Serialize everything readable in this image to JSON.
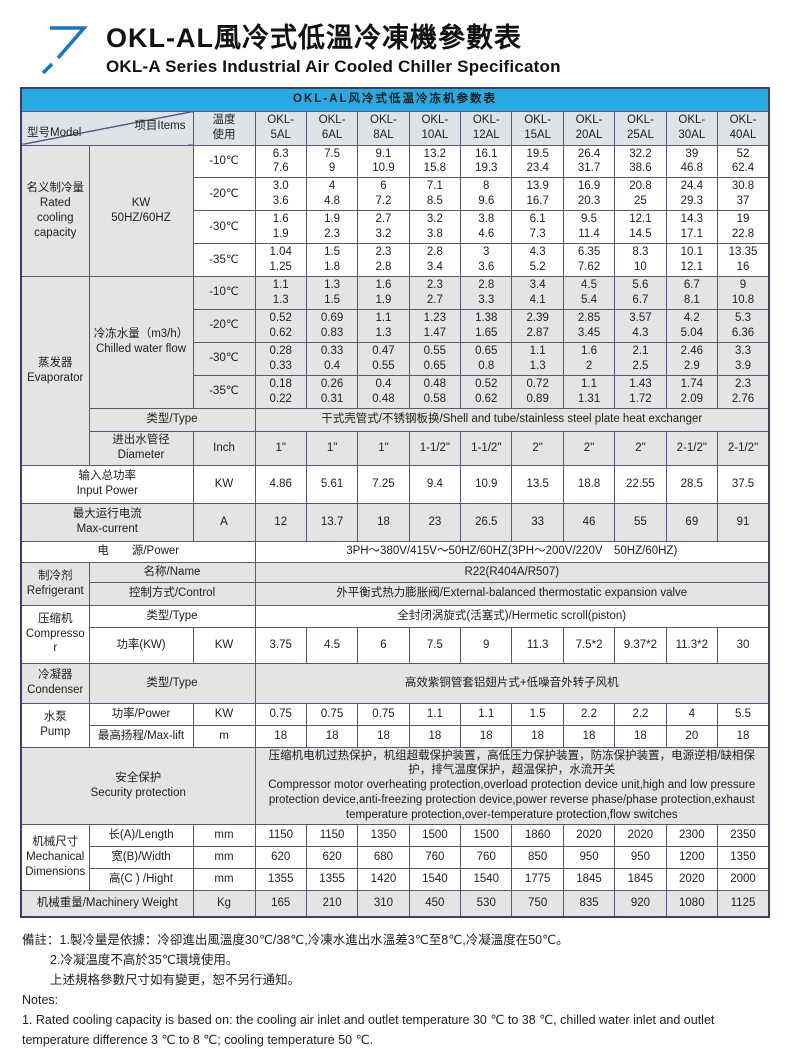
{
  "header": {
    "title_zh": "OKL-AL風冷式低溫冷凍機參數表",
    "title_en": "OKL-A Series Industrial Air Cooled Chiller Specificaton"
  },
  "table": {
    "banner": "OKL-AL风冷式低温冷冻机参数表",
    "corner_model": "型号Model",
    "corner_items": "项目Items",
    "temp_label": "温度\n使用",
    "models": [
      "OKL-\n5AL",
      "OKL-\n6AL",
      "OKL-\n8AL",
      "OKL-\n10AL",
      "OKL-\n12AL",
      "OKL-\n15AL",
      "OKL-\n20AL",
      "OKL-\n25AL",
      "OKL-\n30AL",
      "OKL-\n40AL"
    ],
    "capacity": {
      "row_label": "名义制冷量\nRated\ncooling\ncapacity",
      "unit_label": "KW\n50HZ/60HZ",
      "temps": [
        "-10℃",
        "-20℃",
        "-30℃",
        "-35℃"
      ],
      "rows": [
        [
          "6.3\n7.6",
          "7.5\n9",
          "9.1\n10.9",
          "13.2\n15.8",
          "16.1\n19.3",
          "19.5\n23.4",
          "26.4\n31.7",
          "32.2\n38.6",
          "39\n46.8",
          "52\n62.4"
        ],
        [
          "3.0\n3.6",
          "4\n4.8",
          "6\n7.2",
          "7.1\n8.5",
          "8\n9.6",
          "13.9\n16.7",
          "16.9\n20.3",
          "20.8\n25",
          "24.4\n29.3",
          "30.8\n37"
        ],
        [
          "1.6\n1.9",
          "1.9\n2.3",
          "2.7\n3.2",
          "3.2\n3.8",
          "3.8\n4.6",
          "6.1\n7.3",
          "9.5\n11.4",
          "12.1\n14.5",
          "14.3\n17.1",
          "19\n22.8"
        ],
        [
          "1.04\n1.25",
          "1.5\n1.8",
          "2.3\n2.8",
          "2.8\n3.4",
          "3\n3.6",
          "4.3\n5.2",
          "6.35\n7.62",
          "8.3\n10",
          "10.1\n12.1",
          "13.35\n16"
        ]
      ]
    },
    "evaporator": {
      "row_label": "蒸发器\nEvaporator",
      "flow_label": "冷冻水量（m3/h）\nChilled water flow",
      "temps": [
        "-10℃",
        "-20℃",
        "-30℃",
        "-35℃"
      ],
      "rows": [
        [
          "1.1\n1.3",
          "1.3\n1.5",
          "1.6\n1.9",
          "2.3\n2.7",
          "2.8\n3.3",
          "3.4\n4.1",
          "4.5\n5.4",
          "5.6\n6.7",
          "6.7\n8.1",
          "9\n10.8"
        ],
        [
          "0.52\n0.62",
          "0.69\n0.83",
          "1.1\n1.3",
          "1.23\n1.47",
          "1.38\n1.65",
          "2.39\n2.87",
          "2.85\n3.45",
          "3.57\n4.3",
          "4.2\n5.04",
          "5.3\n6.36"
        ],
        [
          "0.28\n0.33",
          "0.33\n0.4",
          "0.47\n0.55",
          "0.55\n0.65",
          "0.65\n0.8",
          "1.1\n1.3",
          "1.6\n2",
          "2.1\n2.5",
          "2.46\n2.9",
          "3.3\n3.9"
        ],
        [
          "0.18\n0.22",
          "0.26\n0.31",
          "0.4\n0.48",
          "0.48\n0.58",
          "0.52\n0.62",
          "0.72\n0.89",
          "1.1\n1.31",
          "1.43\n1.72",
          "1.74\n2.09",
          "2.3\n2.76"
        ]
      ],
      "type_label": "类型/Type",
      "type_value": "干式壳管式/不锈钢板换/Shell and tube/stainless steel plate heat exchanger",
      "diameter_label": "进出水管径\nDiameter",
      "diameter_unit": "Inch",
      "diameters": [
        "1\"",
        "1\"",
        "1\"",
        "1-1/2\"",
        "1-1/2\"",
        "2\"",
        "2\"",
        "2\"",
        "2-1/2\"",
        "2-1/2\""
      ]
    },
    "input_power": {
      "label": "输入总功率\nInput Power",
      "unit": "KW",
      "values": [
        "4.86",
        "5.61",
        "7.25",
        "9.4",
        "10.9",
        "13.5",
        "18.8",
        "22.55",
        "28.5",
        "37.5"
      ]
    },
    "max_current": {
      "label": "最大运行电流\nMax-current",
      "unit": "A",
      "values": [
        "12",
        "13.7",
        "18",
        "23",
        "26.5",
        "33",
        "46",
        "55",
        "69",
        "91"
      ]
    },
    "power_supply": {
      "label": "电　　源/Power",
      "value": "3PH～380V/415V～50HZ/60HZ(3PH～200V/220V　50HZ/60HZ)"
    },
    "refrigerant": {
      "row_label": "制冷剂\nRefrigerant",
      "name_label": "名称/Name",
      "name_value": "R22(R404A/R507)",
      "control_label": "控制方式/Control",
      "control_value": "外平衡式热力膨胀阀/External-balanced thermostatic expansion valve"
    },
    "compressor": {
      "row_label": "压缩机\nCompressor",
      "type_label": "类型/Type",
      "type_value": "全封闭涡旋式(活塞式)/Hermetic scroll(piston)",
      "power_label": "功率(KW)",
      "power_unit": "KW",
      "power_values": [
        "3.75",
        "4.5",
        "6",
        "7.5",
        "9",
        "11.3",
        "7.5*2",
        "9.37*2",
        "11.3*2",
        "30"
      ]
    },
    "condenser": {
      "row_label": "冷凝器\nCondenser",
      "type_label": "类型/Type",
      "type_value": "高效紫铜管套铝翅片式+低噪音外转子风机"
    },
    "pump": {
      "row_label": "水泵\nPump",
      "power_label": "功率/Power",
      "power_unit": "KW",
      "power_values": [
        "0.75",
        "0.75",
        "0.75",
        "1.1",
        "1.1",
        "1.5",
        "2.2",
        "2.2",
        "4",
        "5.5"
      ],
      "lift_label": "最高扬程/Max-lift",
      "lift_unit": "m",
      "lift_values": [
        "18",
        "18",
        "18",
        "18",
        "18",
        "18",
        "18",
        "18",
        "20",
        "18"
      ]
    },
    "security": {
      "label": "安全保护\nSecurity protection",
      "value": "压缩机电机过热保护，机组超载保护装置，高低压力保护装置，防冻保护装置，电源逆相/缺相保护，排气温度保护，超温保护，水流开关\n Compressor motor overheating protection,overload protection device unit,high and low pressure protection device,anti-freezing protection device,power reverse phase/phase protection,exhaust temperature protection,over-temperature protection,flow switches"
    },
    "mechanical": {
      "row_label": "机械尺寸\nMechanical\nDimensions",
      "rows": [
        {
          "label": "长(A)/Length",
          "unit": "mm",
          "values": [
            "1150",
            "1150",
            "1350",
            "1500",
            "1500",
            "1860",
            "2020",
            "2020",
            "2300",
            "2350"
          ]
        },
        {
          "label": "宽(B)/Width",
          "unit": "mm",
          "values": [
            "620",
            "620",
            "680",
            "760",
            "760",
            "850",
            "950",
            "950",
            "1200",
            "1350"
          ]
        },
        {
          "label": "高(C ) /Hight",
          "unit": "mm",
          "values": [
            "1355",
            "1355",
            "1420",
            "1540",
            "1540",
            "1775",
            "1845",
            "1845",
            "2020",
            "2000"
          ]
        }
      ]
    },
    "weight": {
      "label": "机械重量/Machinery Weight",
      "unit": "Kg",
      "values": [
        "165",
        "210",
        "310",
        "450",
        "530",
        "750",
        "835",
        "920",
        "1080",
        "1125"
      ]
    }
  },
  "notes": {
    "zh1": "備註：1.製冷量是依據：冷卻進出風溫度30℃/38℃,冷凍水進出水溫差3℃至8℃,冷凝溫度在50℃。",
    "zh2": "2.冷凝溫度不高於35℃環境使用。",
    "zh3": "上述規格參數尺寸如有變更，恕不另行通知。",
    "en_title": "Notes:",
    "en1": "1. Rated cooling capacity is based on: the cooling air inlet and outlet temperature 30 ℃ to 38 ℃, chilled water inlet and outlet temperature difference 3 ℃ to 8 ℃; cooling temperature 50 ℃."
  }
}
